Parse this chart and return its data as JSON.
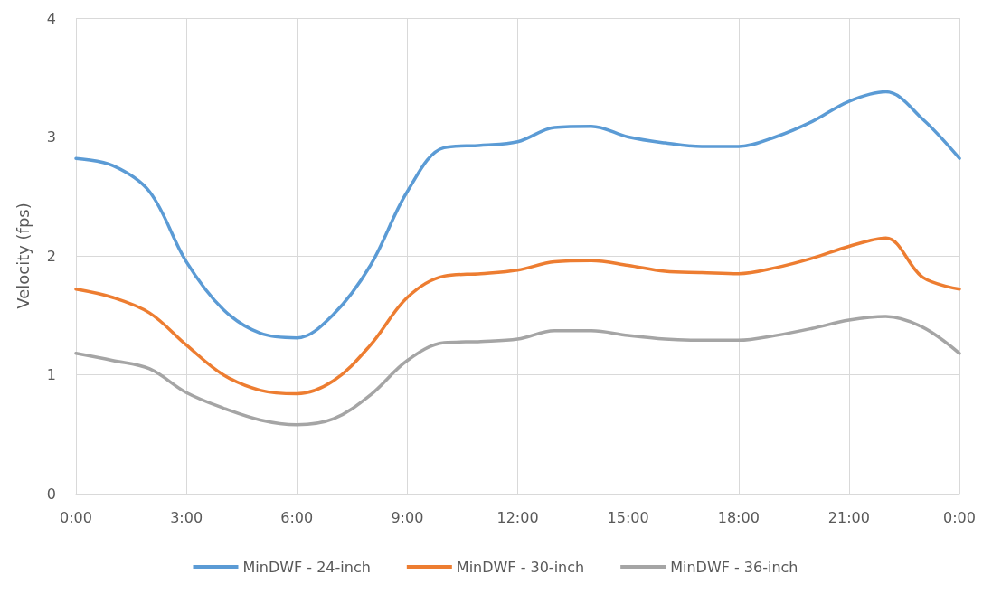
{
  "chart_data": {
    "type": "line",
    "ylabel": "Velocity (fps)",
    "x": [
      0,
      1,
      2,
      3,
      4,
      5,
      6,
      7,
      8,
      9,
      10,
      11,
      12,
      13,
      14,
      15,
      16,
      17,
      18,
      19,
      20,
      21,
      22,
      23,
      24
    ],
    "series": [
      {
        "name": "MinDWF - 24-inch",
        "color": "#5b9bd5",
        "values": [
          2.82,
          2.76,
          2.54,
          1.95,
          1.55,
          1.35,
          1.31,
          1.51,
          1.92,
          2.54,
          2.91,
          2.93,
          2.96,
          3.08,
          3.09,
          3.0,
          2.95,
          2.92,
          2.92,
          3.0,
          3.13,
          3.3,
          3.38,
          3.15,
          2.82
        ]
      },
      {
        "name": "MinDWF - 30-inch",
        "color": "#ed7d31",
        "values": [
          1.72,
          1.65,
          1.52,
          1.25,
          1.0,
          0.87,
          0.84,
          0.95,
          1.25,
          1.65,
          1.83,
          1.85,
          1.88,
          1.95,
          1.96,
          1.92,
          1.87,
          1.86,
          1.85,
          1.9,
          1.98,
          2.08,
          2.15,
          1.82,
          1.72
        ]
      },
      {
        "name": "MinDWF - 36-inch",
        "color": "#a5a5a5",
        "values": [
          1.18,
          1.12,
          1.05,
          0.85,
          0.72,
          0.62,
          0.58,
          0.63,
          0.83,
          1.12,
          1.27,
          1.28,
          1.3,
          1.37,
          1.37,
          1.33,
          1.3,
          1.29,
          1.29,
          1.33,
          1.39,
          1.46,
          1.49,
          1.4,
          1.18
        ]
      }
    ],
    "xlim": [
      0,
      24
    ],
    "xticks": [
      {
        "value": 0,
        "label": "0:00"
      },
      {
        "value": 3,
        "label": "3:00"
      },
      {
        "value": 6,
        "label": "6:00"
      },
      {
        "value": 9,
        "label": "9:00"
      },
      {
        "value": 12,
        "label": "12:00"
      },
      {
        "value": 15,
        "label": "15:00"
      },
      {
        "value": 18,
        "label": "18:00"
      },
      {
        "value": 21,
        "label": "21:00"
      },
      {
        "value": 24,
        "label": "0:00"
      }
    ],
    "ylim": [
      0,
      4
    ],
    "yticks": [
      0,
      1,
      2,
      3,
      4
    ],
    "grid": true,
    "legend": "bottom",
    "marker": "none",
    "line_style": "solid"
  }
}
